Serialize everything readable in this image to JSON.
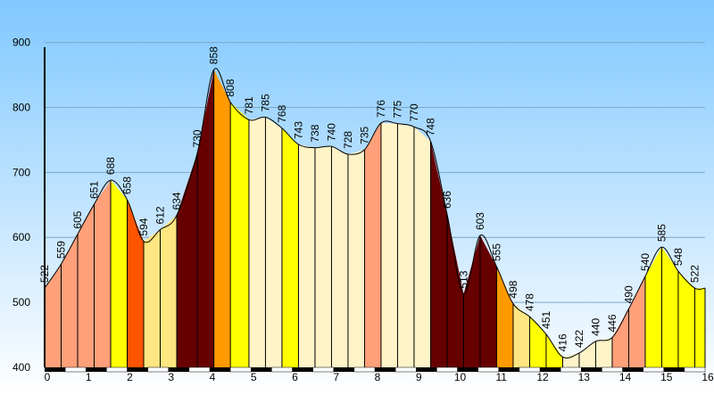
{
  "chart_data": {
    "type": "area",
    "title": "",
    "xlabel": "",
    "ylabel": "",
    "xlim": [
      0,
      16
    ],
    "ylim": [
      400,
      920
    ],
    "grid": true,
    "legend": "none",
    "x_ticks": [
      0,
      1,
      2,
      3,
      4,
      5,
      6,
      7,
      8,
      9,
      10,
      11,
      12,
      13,
      14,
      15,
      16
    ],
    "y_ticks": [
      400,
      500,
      600,
      700,
      800,
      900
    ],
    "x_tick_labels": [
      "0",
      "1",
      "2",
      "3",
      "4",
      "5",
      "6",
      "7",
      "8",
      "9",
      "10",
      "11",
      "12",
      "13",
      "14",
      "15",
      "16"
    ],
    "y_tick_labels": [
      "400",
      "500",
      "600",
      "700",
      "800",
      "900"
    ],
    "points": [
      {
        "x": 0.0,
        "y": 522,
        "label": "522"
      },
      {
        "x": 0.4,
        "y": 559,
        "label": "559"
      },
      {
        "x": 0.8,
        "y": 605,
        "label": "605"
      },
      {
        "x": 1.2,
        "y": 651,
        "label": "651"
      },
      {
        "x": 1.6,
        "y": 688,
        "label": "688"
      },
      {
        "x": 2.0,
        "y": 658,
        "label": "658"
      },
      {
        "x": 2.4,
        "y": 594,
        "label": "594"
      },
      {
        "x": 2.8,
        "y": 612,
        "label": "612"
      },
      {
        "x": 3.2,
        "y": 634,
        "label": "634"
      },
      {
        "x": 3.7,
        "y": 730,
        "label": "730"
      },
      {
        "x": 4.1,
        "y": 858,
        "label": "858"
      },
      {
        "x": 4.5,
        "y": 808,
        "label": "808"
      },
      {
        "x": 4.95,
        "y": 781,
        "label": "781"
      },
      {
        "x": 5.35,
        "y": 785,
        "label": "785"
      },
      {
        "x": 5.75,
        "y": 768,
        "label": "768"
      },
      {
        "x": 6.15,
        "y": 743,
        "label": "743"
      },
      {
        "x": 6.55,
        "y": 738,
        "label": "738"
      },
      {
        "x": 6.95,
        "y": 740,
        "label": "740"
      },
      {
        "x": 7.35,
        "y": 728,
        "label": "728"
      },
      {
        "x": 7.75,
        "y": 735,
        "label": "735"
      },
      {
        "x": 8.15,
        "y": 776,
        "label": "776"
      },
      {
        "x": 8.55,
        "y": 775,
        "label": "775"
      },
      {
        "x": 8.95,
        "y": 770,
        "label": "770"
      },
      {
        "x": 9.35,
        "y": 748,
        "label": "748"
      },
      {
        "x": 9.75,
        "y": 636,
        "label": "636"
      },
      {
        "x": 10.15,
        "y": 513,
        "label": "513"
      },
      {
        "x": 10.55,
        "y": 603,
        "label": "603"
      },
      {
        "x": 10.95,
        "y": 555,
        "label": "555"
      },
      {
        "x": 11.35,
        "y": 498,
        "label": "498"
      },
      {
        "x": 11.75,
        "y": 478,
        "label": "478"
      },
      {
        "x": 12.15,
        "y": 451,
        "label": "451"
      },
      {
        "x": 12.55,
        "y": 416,
        "label": "416"
      },
      {
        "x": 12.95,
        "y": 422,
        "label": "422"
      },
      {
        "x": 13.35,
        "y": 440,
        "label": "440"
      },
      {
        "x": 13.75,
        "y": 446,
        "label": "446"
      },
      {
        "x": 14.15,
        "y": 490,
        "label": "490"
      },
      {
        "x": 14.55,
        "y": 540,
        "label": "540"
      },
      {
        "x": 14.95,
        "y": 585,
        "label": "585"
      },
      {
        "x": 15.35,
        "y": 548,
        "label": "548"
      },
      {
        "x": 15.75,
        "y": 522,
        "label": "522"
      }
    ],
    "segment_colors": [
      "#ffa07a",
      "#ffa07a",
      "#ffa07a",
      "#ffa07a",
      "#ffff00",
      "#ff5500",
      "#ffe680",
      "#ffe680",
      "#660000",
      "#660000",
      "#ff9900",
      "#ffff00",
      "#fff3c8",
      "#fff3c8",
      "#ffff00",
      "#fff3c8",
      "#fff3c8",
      "#fff3c8",
      "#fff3c8",
      "#ffa07a",
      "#fff3c8",
      "#fff3c8",
      "#fff3c8",
      "#660000",
      "#660000",
      "#660000",
      "#660000",
      "#ff9900",
      "#ffe680",
      "#ffff00",
      "#ffff00",
      "#fff3c8",
      "#fff3c8",
      "#fff3c8",
      "#ffa07a",
      "#ffa07a",
      "#ffff00",
      "#ffff00",
      "#ffff00"
    ],
    "colors": {
      "background_top": "#80c8ff",
      "background_bottom": "#ffffff",
      "gridline": "#7aa8c8",
      "outline": "#000000",
      "axis_bar_dark": "#000000",
      "axis_bar_light": "#ffffff"
    }
  }
}
